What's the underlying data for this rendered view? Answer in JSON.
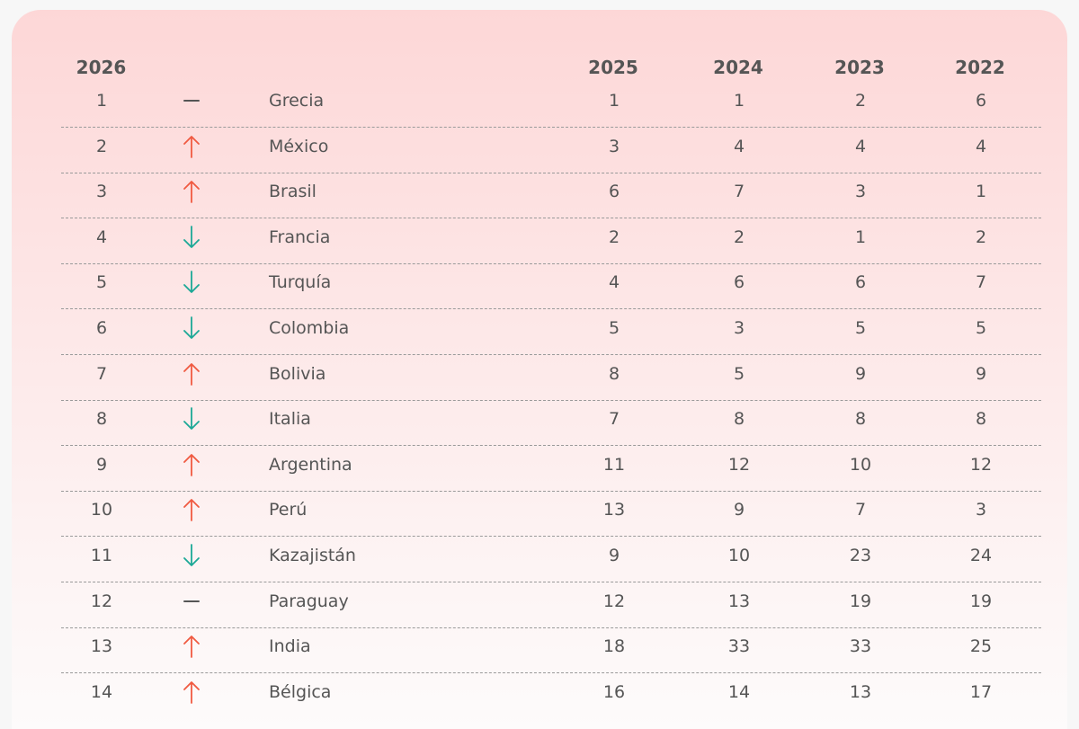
{
  "headers": {
    "col_2026": "2026",
    "col_2025": "2025",
    "col_2024": "2024",
    "col_2023": "2023",
    "col_2022": "2022"
  },
  "colors": {
    "up": "#f05a41",
    "down": "#1ba896",
    "same": "#555555"
  },
  "rows": [
    {
      "rank": "1",
      "trend": "same",
      "country": "Grecia",
      "y2025": "1",
      "y2024": "1",
      "y2023": "2",
      "y2022": "6"
    },
    {
      "rank": "2",
      "trend": "up",
      "country": "México",
      "y2025": "3",
      "y2024": "4",
      "y2023": "4",
      "y2022": "4"
    },
    {
      "rank": "3",
      "trend": "up",
      "country": "Brasil",
      "y2025": "6",
      "y2024": "7",
      "y2023": "3",
      "y2022": "1"
    },
    {
      "rank": "4",
      "trend": "down",
      "country": "Francia",
      "y2025": "2",
      "y2024": "2",
      "y2023": "1",
      "y2022": "2"
    },
    {
      "rank": "5",
      "trend": "down",
      "country": "Turquía",
      "y2025": "4",
      "y2024": "6",
      "y2023": "6",
      "y2022": "7"
    },
    {
      "rank": "6",
      "trend": "down",
      "country": "Colombia",
      "y2025": "5",
      "y2024": "3",
      "y2023": "5",
      "y2022": "5"
    },
    {
      "rank": "7",
      "trend": "up",
      "country": "Bolivia",
      "y2025": "8",
      "y2024": "5",
      "y2023": "9",
      "y2022": "9"
    },
    {
      "rank": "8",
      "trend": "down",
      "country": "Italia",
      "y2025": "7",
      "y2024": "8",
      "y2023": "8",
      "y2022": "8"
    },
    {
      "rank": "9",
      "trend": "up",
      "country": "Argentina",
      "y2025": "11",
      "y2024": "12",
      "y2023": "10",
      "y2022": "12"
    },
    {
      "rank": "10",
      "trend": "up",
      "country": "Perú",
      "y2025": "13",
      "y2024": "9",
      "y2023": "7",
      "y2022": "3"
    },
    {
      "rank": "11",
      "trend": "down",
      "country": "Kazajistán",
      "y2025": "9",
      "y2024": "10",
      "y2023": "23",
      "y2022": "24"
    },
    {
      "rank": "12",
      "trend": "same",
      "country": "Paraguay",
      "y2025": "12",
      "y2024": "13",
      "y2023": "19",
      "y2022": "19"
    },
    {
      "rank": "13",
      "trend": "up",
      "country": "India",
      "y2025": "18",
      "y2024": "33",
      "y2023": "33",
      "y2022": "25"
    },
    {
      "rank": "14",
      "trend": "up",
      "country": "Bélgica",
      "y2025": "16",
      "y2024": "14",
      "y2023": "13",
      "y2022": "17"
    }
  ]
}
